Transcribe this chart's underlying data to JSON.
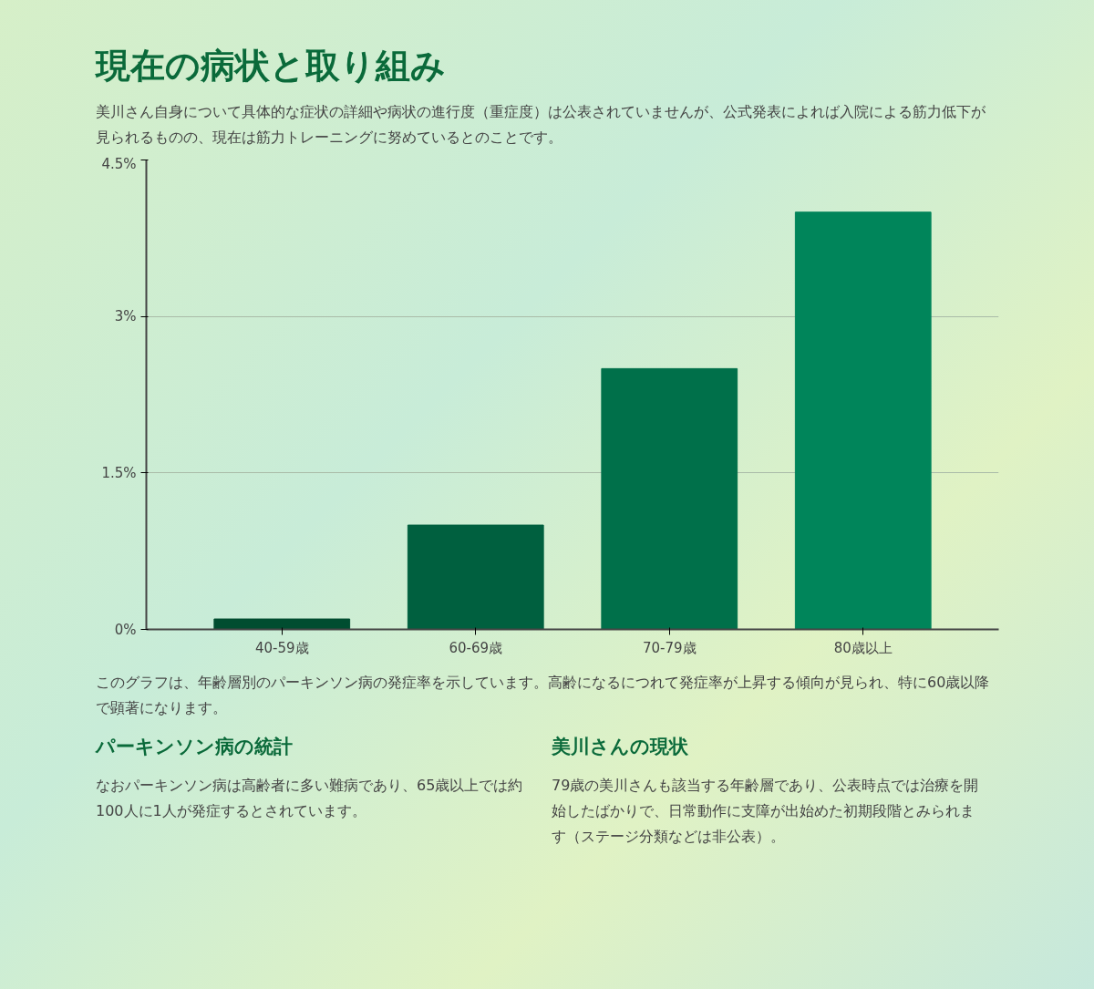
{
  "chart_data": {
    "type": "bar",
    "title": "現在の病状と取り組み",
    "subtitle": "美川さん自身について具体的な症状の詳細や病状の進行度（重症度）は公表されていませんが、公式発表によれば入院による筋力低下が見られるものの、現在は筋力トレーニングに努めているとのことです。",
    "categories": [
      "40-59歳",
      "60-69歳",
      "70-79歳",
      "80歳以上"
    ],
    "values": [
      0.1,
      1.0,
      2.5,
      4.0
    ],
    "colors": [
      "#004d30",
      "#00603f",
      "#00704a",
      "#00855a"
    ],
    "ylim": [
      0,
      4.5
    ],
    "yticks": [
      {
        "value": 0,
        "label": "0%"
      },
      {
        "value": 1.5,
        "label": "1.5%"
      },
      {
        "value": 3,
        "label": "3%"
      },
      {
        "value": 4.5,
        "label": "4.5%"
      }
    ],
    "grid": "y",
    "annotations": [
      "このグラフは、年齢層別のパーキンソン病の発症率を示しています。高齢になるにつれて発症率が上昇する傾向が見られ、特に60歳以降で顕著になります。",
      "パーキンソン病の統計",
      "なおパーキンソン病は高齢者に多い難病であり、65歳以上では約100人に1人が発症するとされています。",
      "美川さんの現状",
      "79歳の美川さんも該当する年齢層であり、公表時点では治療を開始したばかりで、日常動作に支障が出始めた初期段階とみられます（ステージ分類などは非公表）。"
    ]
  }
}
